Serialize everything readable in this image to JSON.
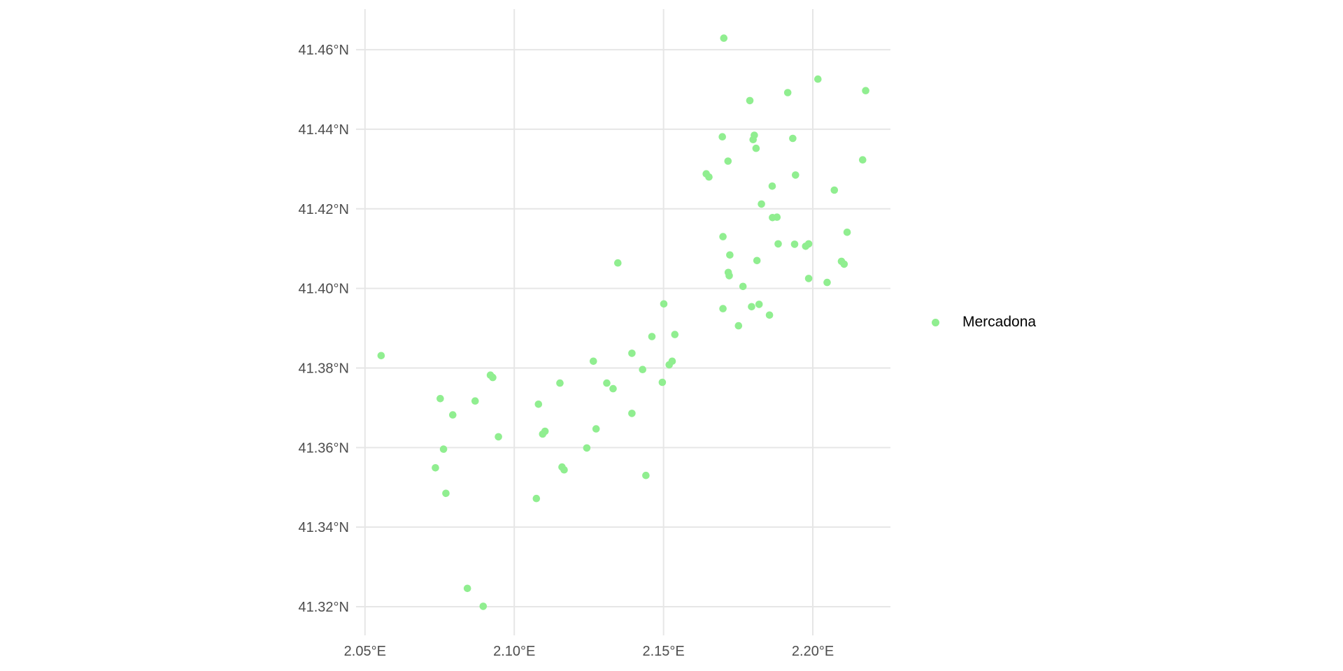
{
  "chart_data": {
    "type": "scatter",
    "title": "",
    "xlabel": "",
    "ylabel": "",
    "grid": "on",
    "legend_position": "right",
    "xlim": [
      2.047,
      2.226
    ],
    "ylim": [
      41.3128,
      41.4702
    ],
    "x_ticks": {
      "values": [
        2.05,
        2.1,
        2.15,
        2.2
      ],
      "labels": [
        "2.05°E",
        "2.10°E",
        "2.15°E",
        "2.20°E"
      ]
    },
    "y_ticks": {
      "values": [
        41.46,
        41.44,
        41.42,
        41.4,
        41.38,
        41.36,
        41.34,
        41.32
      ],
      "labels": [
        "41.46°N",
        "41.44°N",
        "41.42°N",
        "41.40°N",
        "41.38°N",
        "41.36°N",
        "41.34°N",
        "41.32°N"
      ]
    },
    "series": [
      {
        "name": "Mercadona",
        "color": "#90EE90",
        "marker": "circle",
        "points": [
          [
            2.1702,
            41.4629
          ],
          [
            2.2017,
            41.4526
          ],
          [
            2.2177,
            41.4497
          ],
          [
            2.1916,
            41.4492
          ],
          [
            2.1789,
            41.4472
          ],
          [
            2.1697,
            41.4381
          ],
          [
            2.1804,
            41.4385
          ],
          [
            2.18,
            41.4374
          ],
          [
            2.1933,
            41.4377
          ],
          [
            2.181,
            41.4352
          ],
          [
            2.1716,
            41.432
          ],
          [
            2.2167,
            41.4323
          ],
          [
            2.1643,
            41.4288
          ],
          [
            2.1652,
            41.428
          ],
          [
            2.1942,
            41.4285
          ],
          [
            2.1864,
            41.4257
          ],
          [
            2.2072,
            41.4247
          ],
          [
            2.1828,
            41.4212
          ],
          [
            2.1865,
            41.4178
          ],
          [
            2.188,
            41.4179
          ],
          [
            2.2115,
            41.4141
          ],
          [
            2.1699,
            41.413
          ],
          [
            2.1884,
            41.4112
          ],
          [
            2.1939,
            41.4111
          ],
          [
            2.1976,
            41.4106
          ],
          [
            2.1986,
            41.4112
          ],
          [
            2.1722,
            41.4084
          ],
          [
            2.1347,
            41.4064
          ],
          [
            2.1813,
            41.407
          ],
          [
            2.2096,
            41.4068
          ],
          [
            2.2105,
            41.4061
          ],
          [
            2.1717,
            41.404
          ],
          [
            2.172,
            41.4032
          ],
          [
            2.1986,
            41.4025
          ],
          [
            2.2048,
            41.4015
          ],
          [
            2.1766,
            41.4005
          ],
          [
            2.1699,
            41.3949
          ],
          [
            2.1795,
            41.3954
          ],
          [
            2.182,
            41.396
          ],
          [
            2.1855,
            41.3933
          ],
          [
            2.1751,
            41.3906
          ],
          [
            2.1501,
            41.3961
          ],
          [
            2.1461,
            41.3879
          ],
          [
            2.1538,
            41.3884
          ],
          [
            2.1394,
            41.3837
          ],
          [
            2.0554,
            41.3831
          ],
          [
            2.1265,
            41.3817
          ],
          [
            2.143,
            41.3796
          ],
          [
            2.1519,
            41.3808
          ],
          [
            2.1529,
            41.3817
          ],
          [
            2.092,
            41.3782
          ],
          [
            2.0928,
            41.3776
          ],
          [
            2.1153,
            41.3762
          ],
          [
            2.131,
            41.3762
          ],
          [
            2.1331,
            41.3748
          ],
          [
            2.1496,
            41.3764
          ],
          [
            2.0752,
            41.3723
          ],
          [
            2.0869,
            41.3717
          ],
          [
            2.1081,
            41.3709
          ],
          [
            2.1394,
            41.3686
          ],
          [
            2.0794,
            41.3682
          ],
          [
            2.1274,
            41.3647
          ],
          [
            2.1095,
            41.3634
          ],
          [
            2.1103,
            41.3641
          ],
          [
            2.0947,
            41.3627
          ],
          [
            2.1243,
            41.3599
          ],
          [
            2.0763,
            41.3596
          ],
          [
            2.116,
            41.3551
          ],
          [
            2.1167,
            41.3544
          ],
          [
            2.1441,
            41.353
          ],
          [
            2.0736,
            41.3549
          ],
          [
            2.0771,
            41.3485
          ],
          [
            2.1074,
            41.3472
          ],
          [
            2.0843,
            41.3246
          ],
          [
            2.0896,
            41.3201
          ]
        ]
      }
    ]
  },
  "legend": {
    "label": "Mercadona"
  },
  "colors": {
    "background": "#ffffff",
    "grid": "#e6e6e6",
    "axis_text": "#4d4d4d",
    "legend_text": "#000000",
    "point_fill": "#90EE90"
  }
}
